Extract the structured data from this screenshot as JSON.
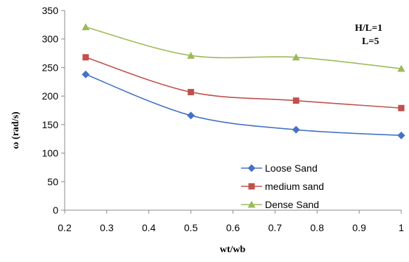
{
  "chart_data": {
    "type": "line",
    "title": "",
    "xlabel": "wt/wb",
    "ylabel": "ω (rad/s)",
    "xlim": [
      0.2,
      1
    ],
    "ylim": [
      0,
      350
    ],
    "xticks": [
      "0.2",
      "0.3",
      "0.4",
      "0.5",
      "0.6",
      "0.7",
      "0.8",
      "0.9",
      "1"
    ],
    "yticks": [
      "0",
      "50",
      "100",
      "150",
      "200",
      "250",
      "300",
      "350"
    ],
    "grid": "none",
    "legend_position": "bottom-right",
    "annotations": [
      "H/L=1",
      "L=5"
    ],
    "series": [
      {
        "name": "Loose Sand",
        "color": "#4472C4",
        "marker": "diamond",
        "x": [
          0.25,
          0.5,
          0.75,
          1
        ],
        "values": [
          238,
          166,
          141,
          131
        ]
      },
      {
        "name": "medium sand",
        "color": "#C0504D",
        "marker": "square",
        "x": [
          0.25,
          0.5,
          0.75,
          1
        ],
        "values": [
          268,
          207,
          192,
          179
        ]
      },
      {
        "name": "Dense Sand",
        "color": "#9BBB59",
        "marker": "triangle",
        "x": [
          0.25,
          0.5,
          0.75,
          1
        ],
        "values": [
          321,
          271,
          268,
          248
        ]
      }
    ]
  }
}
